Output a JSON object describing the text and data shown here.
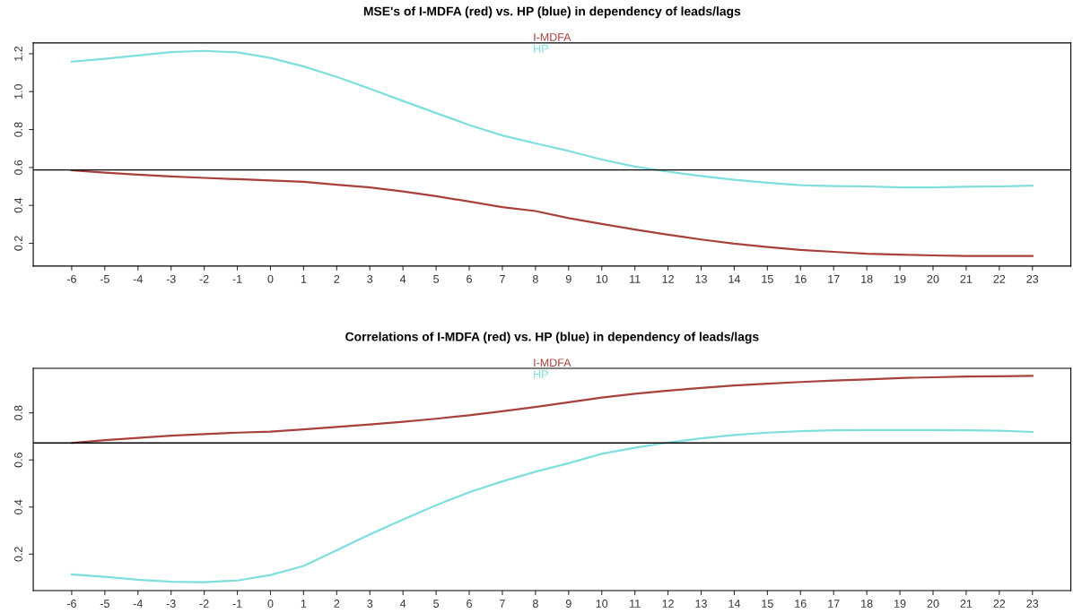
{
  "chart_data": [
    {
      "type": "line",
      "title": "MSE's of I-MDFA (red) vs. HP (blue) in dependency of leads/lags",
      "x": [
        -6,
        -5,
        -4,
        -3,
        -2,
        -1,
        0,
        1,
        2,
        3,
        4,
        5,
        6,
        7,
        8,
        9,
        10,
        11,
        12,
        13,
        14,
        15,
        16,
        17,
        18,
        19,
        20,
        21,
        22,
        23
      ],
      "series": [
        {
          "name": "I-MDFA",
          "color": "#a8403c",
          "values": [
            0.585,
            0.573,
            0.562,
            0.553,
            0.545,
            0.538,
            0.531,
            0.524,
            0.509,
            0.495,
            0.473,
            0.449,
            0.42,
            0.391,
            0.37,
            0.333,
            0.302,
            0.273,
            0.245,
            0.22,
            0.198,
            0.18,
            0.165,
            0.155,
            0.145,
            0.14,
            0.136,
            0.133,
            0.133,
            0.133
          ]
        },
        {
          "name": "HP",
          "color": "#7fdede",
          "values": [
            1.158,
            1.173,
            1.191,
            1.209,
            1.215,
            1.207,
            1.178,
            1.133,
            1.078,
            1.015,
            0.951,
            0.887,
            0.824,
            0.769,
            0.727,
            0.687,
            0.642,
            0.605,
            0.578,
            0.555,
            0.535,
            0.52,
            0.507,
            0.502,
            0.5,
            0.495,
            0.495,
            0.498,
            0.5,
            0.504
          ]
        }
      ],
      "xlim": [
        -7.16,
        24.16
      ],
      "xticks": [
        -6,
        -5,
        -4,
        -3,
        -2,
        -1,
        0,
        1,
        2,
        3,
        4,
        5,
        6,
        7,
        8,
        9,
        10,
        11,
        12,
        13,
        14,
        15,
        16,
        17,
        18,
        19,
        20,
        21,
        22,
        23
      ],
      "ylim": [
        0.08,
        1.257
      ],
      "yticks": [
        0.2,
        0.4,
        0.6,
        0.8,
        {
          "value": 1.0,
          "label": "1.0"
        },
        1.2
      ],
      "ref_lines": [
        {
          "axis": "y",
          "value": 0.587,
          "color": "#000000"
        }
      ],
      "legend": "top",
      "grid": false
    },
    {
      "type": "line",
      "title": "Correlations of I-MDFA (red) vs. HP (blue) in dependency of leads/lags",
      "x": [
        -6,
        -5,
        -4,
        -3,
        -2,
        -1,
        0,
        1,
        2,
        3,
        4,
        5,
        6,
        7,
        8,
        9,
        10,
        11,
        12,
        13,
        14,
        15,
        16,
        17,
        18,
        19,
        20,
        21,
        22,
        23
      ],
      "series": [
        {
          "name": "I-MDFA",
          "color": "#a8403c",
          "values": [
            0.672,
            0.684,
            0.694,
            0.703,
            0.71,
            0.716,
            0.72,
            0.73,
            0.74,
            0.751,
            0.762,
            0.775,
            0.79,
            0.807,
            0.825,
            0.845,
            0.865,
            0.881,
            0.894,
            0.906,
            0.916,
            0.924,
            0.931,
            0.937,
            0.942,
            0.948,
            0.951,
            0.954,
            0.955,
            0.957
          ]
        },
        {
          "name": "HP",
          "color": "#7fdede",
          "values": [
            0.114,
            0.104,
            0.091,
            0.083,
            0.081,
            0.088,
            0.111,
            0.15,
            0.216,
            0.284,
            0.347,
            0.408,
            0.463,
            0.509,
            0.55,
            0.586,
            0.626,
            0.652,
            0.674,
            0.692,
            0.706,
            0.716,
            0.722,
            0.726,
            0.727,
            0.727,
            0.727,
            0.726,
            0.724,
            0.719
          ]
        }
      ],
      "xlim": [
        -7.16,
        24.16
      ],
      "xticks": [
        -6,
        -5,
        -4,
        -3,
        -2,
        -1,
        0,
        1,
        2,
        3,
        4,
        5,
        6,
        7,
        8,
        9,
        10,
        11,
        12,
        13,
        14,
        15,
        16,
        17,
        18,
        19,
        20,
        21,
        22,
        23
      ],
      "ylim": [
        0.045,
        0.989
      ],
      "yticks": [
        0.2,
        0.4,
        0.6,
        0.8
      ],
      "ref_lines": [
        {
          "axis": "y",
          "value": 0.672,
          "color": "#000000"
        }
      ],
      "legend": "top",
      "grid": false
    }
  ]
}
